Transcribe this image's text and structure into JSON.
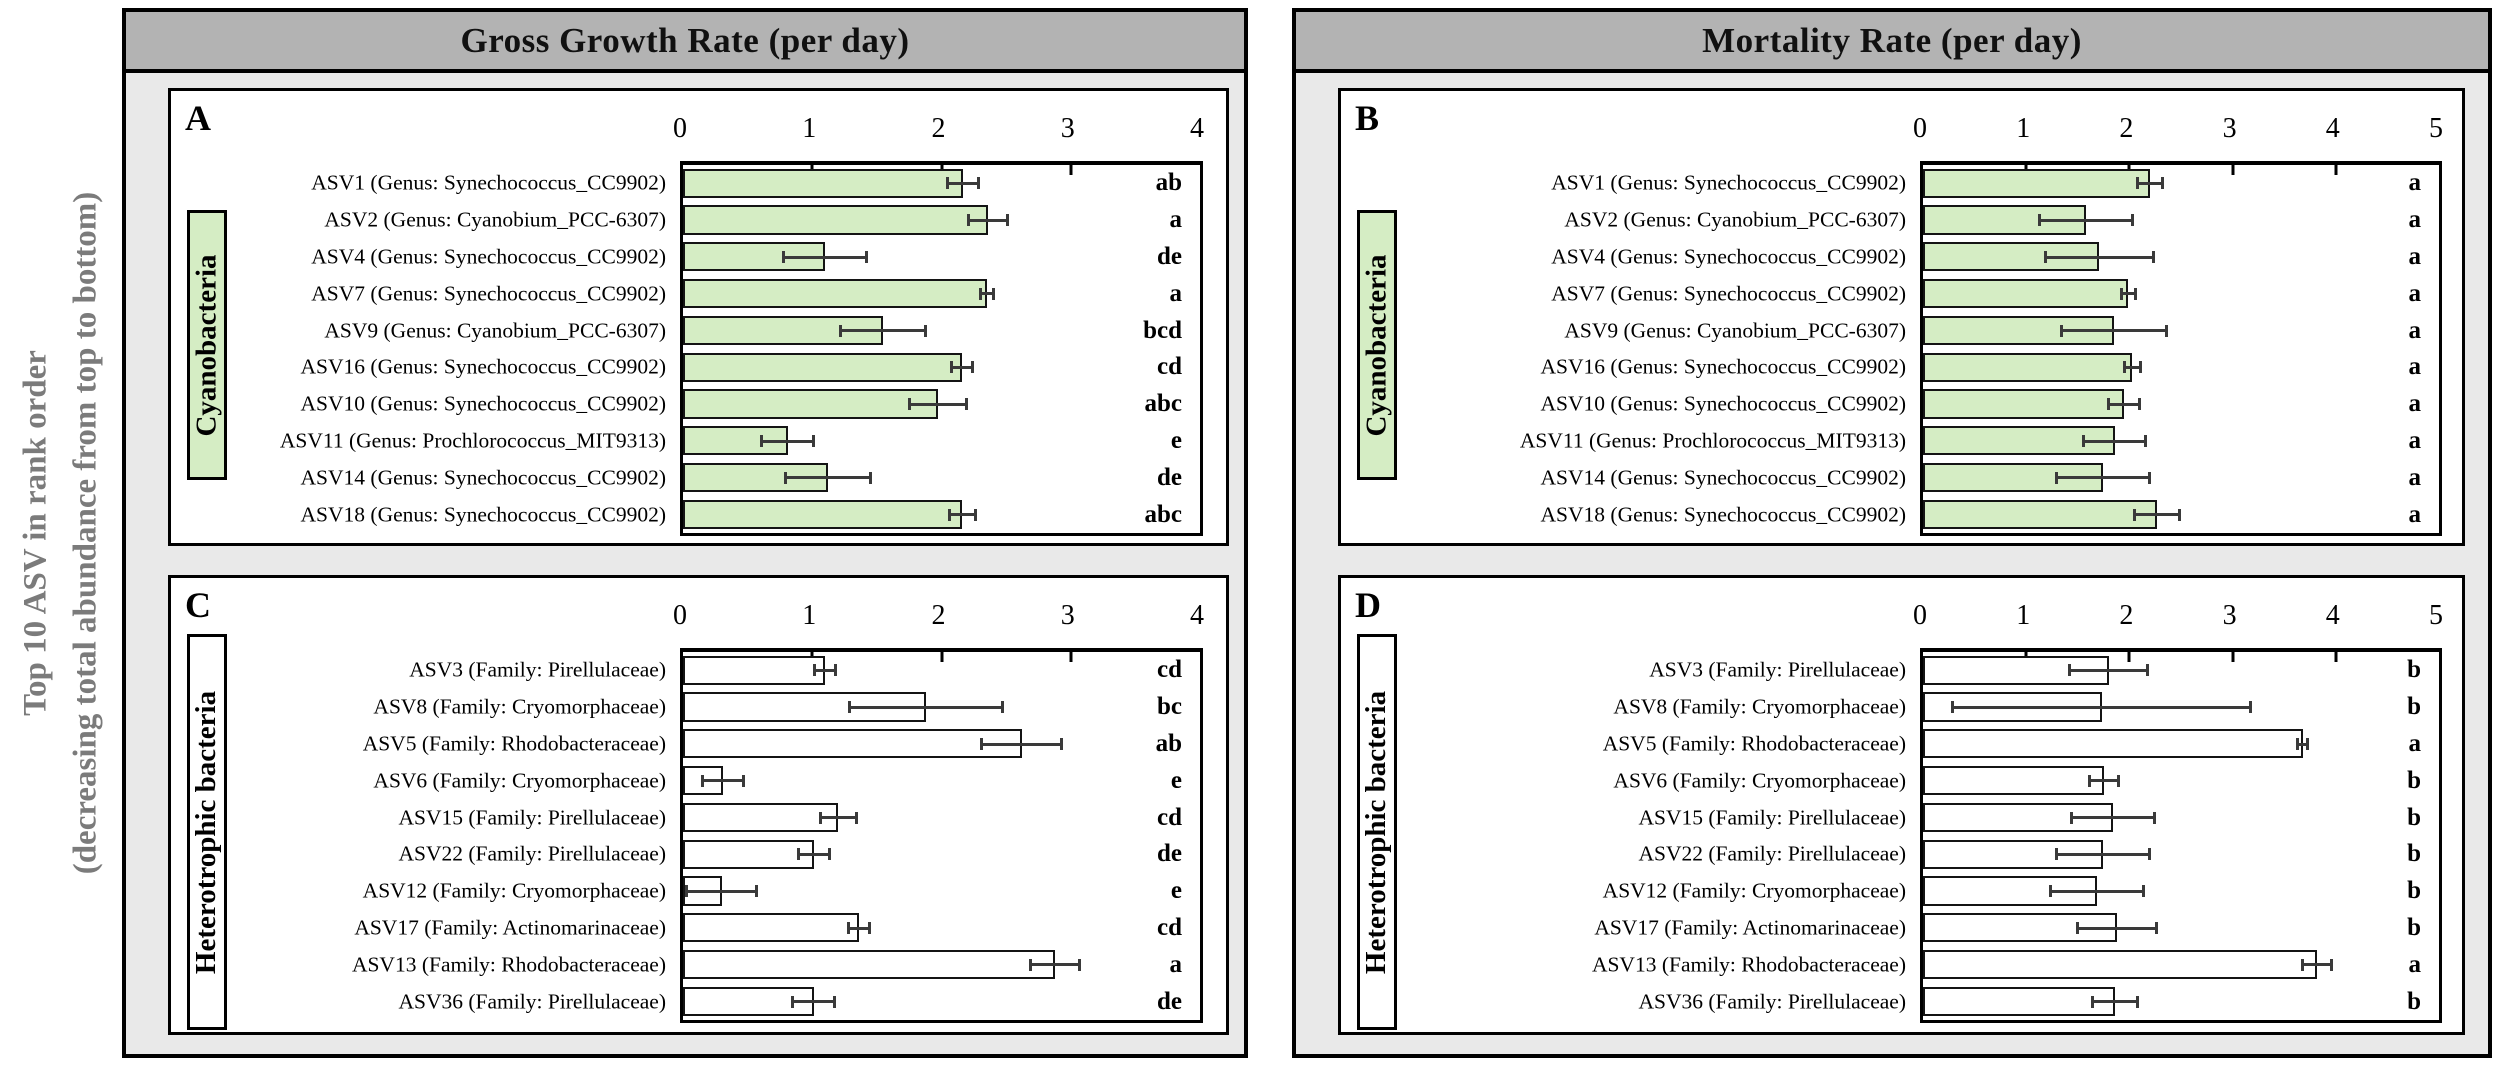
{
  "sidebar": {
    "line1": "Top 10 ASV in rank order",
    "line2": "(decreasing total abundance from top to bottom)"
  },
  "columns": [
    {
      "title": "Gross Growth Rate (per day)"
    },
    {
      "title": "Mortality Rate (per day)"
    }
  ],
  "colors": {
    "green_fill": "#d5edc4",
    "white_fill": "#ffffff",
    "header_bg": "#b3b3b3",
    "outer_bg": "#e9e9e9",
    "error_bar": "#3a3a3a",
    "sidebar_text": "#7b7b7b"
  },
  "chart_data": [
    {
      "id": "A",
      "type": "bar",
      "orientation": "horizontal",
      "column_title": "Gross Growth Rate (per day)",
      "group": "Cyanobacteria",
      "bar_fill": "#d5edc4",
      "xlim": [
        0,
        4
      ],
      "ticks": [
        0,
        1,
        2,
        3,
        4
      ],
      "categories": [
        "ASV1 (Genus: Synechococcus_CC9902)",
        "ASV2 (Genus: Cyanobium_PCC-6307)",
        "ASV4 (Genus: Synechococcus_CC9902)",
        "ASV7 (Genus: Synechococcus_CC9902)",
        "ASV9 (Genus: Cyanobium_PCC-6307)",
        "ASV16 (Genus: Synechococcus_CC9902)",
        "ASV10 (Genus: Synechococcus_CC9902)",
        "ASV11 (Genus: Prochlorococcus_MIT9313)",
        "ASV14 (Genus: Synechococcus_CC9902)",
        "ASV18 (Genus: Synechococcus_CC9902)"
      ],
      "values": [
        2.17,
        2.36,
        1.1,
        2.35,
        1.55,
        2.16,
        1.97,
        0.81,
        1.12,
        2.16
      ],
      "errors": [
        0.12,
        0.15,
        0.32,
        0.05,
        0.33,
        0.08,
        0.22,
        0.2,
        0.33,
        0.1
      ],
      "sig_letters": [
        "ab",
        "a",
        "de",
        "a",
        "bcd",
        "cd",
        "abc",
        "e",
        "de",
        "abc"
      ]
    },
    {
      "id": "B",
      "type": "bar",
      "orientation": "horizontal",
      "column_title": "Mortality Rate (per day)",
      "group": "Cyanobacteria",
      "bar_fill": "#d5edc4",
      "xlim": [
        0,
        5
      ],
      "ticks": [
        0,
        1,
        2,
        3,
        4,
        5
      ],
      "categories": [
        "ASV1 (Genus: Synechococcus_CC9902)",
        "ASV2 (Genus: Cyanobium_PCC-6307)",
        "ASV4 (Genus: Synechococcus_CC9902)",
        "ASV7 (Genus: Synechococcus_CC9902)",
        "ASV9 (Genus: Cyanobium_PCC-6307)",
        "ASV16 (Genus: Synechococcus_CC9902)",
        "ASV10 (Genus: Synechococcus_CC9902)",
        "ASV11 (Genus: Prochlorococcus_MIT9313)",
        "ASV14 (Genus: Synechococcus_CC9902)",
        "ASV18 (Genus: Synechococcus_CC9902)"
      ],
      "values": [
        2.2,
        1.58,
        1.71,
        1.99,
        1.85,
        2.03,
        1.95,
        1.86,
        1.74,
        2.27
      ],
      "errors": [
        0.12,
        0.45,
        0.52,
        0.07,
        0.51,
        0.08,
        0.15,
        0.3,
        0.45,
        0.22
      ],
      "sig_letters": [
        "a",
        "a",
        "a",
        "a",
        "a",
        "a",
        "a",
        "a",
        "a",
        "a"
      ]
    },
    {
      "id": "C",
      "type": "bar",
      "orientation": "horizontal",
      "column_title": "Gross Growth Rate (per day)",
      "group": "Heterotrophic bacteria",
      "bar_fill": "#ffffff",
      "xlim": [
        0,
        4
      ],
      "ticks": [
        0,
        1,
        2,
        3,
        4
      ],
      "categories": [
        "ASV3 (Family: Pirellulaceae)",
        "ASV8 (Family: Cryomorphaceae)",
        "ASV5 (Family: Rhodobacteraceae)",
        "ASV6 (Family: Cryomorphaceae)",
        "ASV15 (Family: Pirellulaceae)",
        "ASV22 (Family: Pirellulaceae)",
        "ASV12 (Family: Cryomorphaceae)",
        "ASV17 (Family: Actinomarinaceae)",
        "ASV13 (Family: Rhodobacteraceae)",
        "ASV36 (Family: Pirellulaceae)"
      ],
      "values": [
        1.1,
        1.88,
        2.62,
        0.31,
        1.2,
        1.01,
        0.3,
        1.36,
        2.88,
        1.01
      ],
      "errors": [
        0.08,
        0.59,
        0.31,
        0.16,
        0.14,
        0.12,
        0.27,
        0.08,
        0.19,
        0.16
      ],
      "sig_letters": [
        "cd",
        "bc",
        "ab",
        "e",
        "cd",
        "de",
        "e",
        "cd",
        "a",
        "de"
      ]
    },
    {
      "id": "D",
      "type": "bar",
      "orientation": "horizontal",
      "column_title": "Mortality Rate (per day)",
      "group": "Heterotrophic bacteria",
      "bar_fill": "#ffffff",
      "xlim": [
        0,
        5
      ],
      "ticks": [
        0,
        1,
        2,
        3,
        4,
        5
      ],
      "categories": [
        "ASV3 (Family: Pirellulaceae)",
        "ASV8 (Family: Cryomorphaceae)",
        "ASV5 (Family: Rhodobacteraceae)",
        "ASV6 (Family: Cryomorphaceae)",
        "ASV15 (Family: Pirellulaceae)",
        "ASV22 (Family: Pirellulaceae)",
        "ASV12 (Family: Cryomorphaceae)",
        "ASV17 (Family: Actinomarinaceae)",
        "ASV13 (Family: Rhodobacteraceae)",
        "ASV36 (Family: Pirellulaceae)"
      ],
      "values": [
        1.8,
        1.73,
        3.68,
        1.75,
        1.84,
        1.74,
        1.69,
        1.88,
        3.82,
        1.86
      ],
      "errors": [
        0.38,
        1.44,
        0.05,
        0.14,
        0.4,
        0.45,
        0.45,
        0.38,
        0.14,
        0.22
      ],
      "sig_letters": [
        "b",
        "b",
        "a",
        "b",
        "b",
        "b",
        "b",
        "b",
        "a",
        "b"
      ]
    }
  ]
}
